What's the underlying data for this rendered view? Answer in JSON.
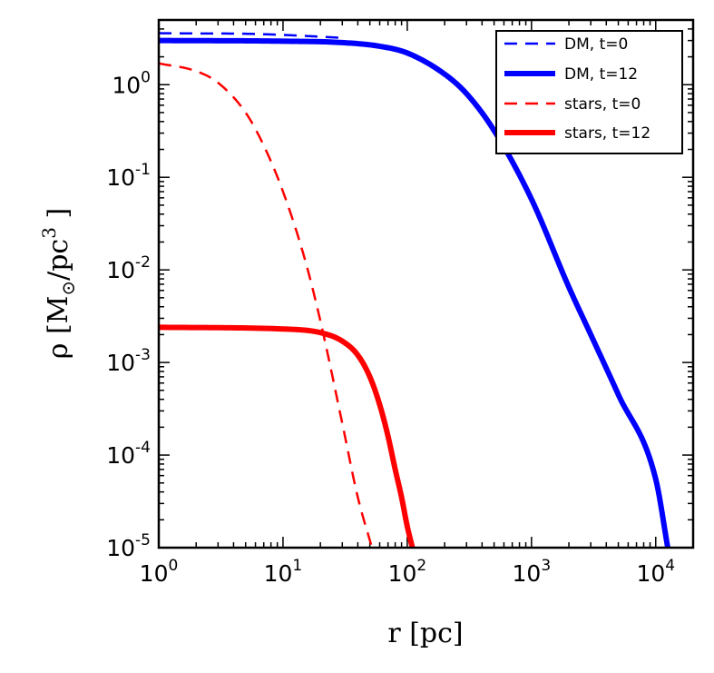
{
  "chart_data": {
    "type": "line",
    "xscale": "log",
    "yscale": "log",
    "xlim": [
      1,
      20000
    ],
    "ylim": [
      1e-05,
      5
    ],
    "xlabel": "r [pc]",
    "ylabel": {
      "prefix": "ρ [M",
      "sub": "⊙",
      "mid": "/pc",
      "sup": "3",
      "suffix": " ]"
    },
    "x_ticks": [
      {
        "value": 1,
        "base": "10",
        "exp": "0"
      },
      {
        "value": 10,
        "base": "10",
        "exp": "1"
      },
      {
        "value": 100,
        "base": "10",
        "exp": "2"
      },
      {
        "value": 1000,
        "base": "10",
        "exp": "3"
      },
      {
        "value": 10000,
        "base": "10",
        "exp": "4"
      }
    ],
    "y_ticks": [
      {
        "value": 1,
        "base": "10",
        "exp": "0"
      },
      {
        "value": 0.1,
        "base": "10",
        "exp": "-1"
      },
      {
        "value": 0.01,
        "base": "10",
        "exp": "-2"
      },
      {
        "value": 0.001,
        "base": "10",
        "exp": "-3"
      },
      {
        "value": 0.0001,
        "base": "10",
        "exp": "-4"
      },
      {
        "value": 1e-05,
        "base": "10",
        "exp": "-5"
      }
    ],
    "series": [
      {
        "name": "DM, t=0",
        "color": "#0000ff",
        "style": "dashed",
        "x": [
          1,
          2,
          5,
          10,
          20,
          30
        ],
        "y": [
          3.6,
          3.58,
          3.55,
          3.45,
          3.3,
          3.2
        ]
      },
      {
        "name": "DM, t=12",
        "color": "#0000ff",
        "style": "solid",
        "x": [
          1,
          10,
          30,
          60,
          100,
          200,
          300,
          500,
          1000,
          2000,
          3000,
          5000,
          10000,
          12500
        ],
        "y": [
          3.0,
          2.95,
          2.85,
          2.6,
          2.2,
          1.3,
          0.8,
          0.32,
          0.058,
          0.0065,
          0.002,
          0.00045,
          5.5e-05,
          1e-05
        ]
      },
      {
        "name": "stars, t=0",
        "color": "#ff0000",
        "style": "dashed",
        "x": [
          1,
          2,
          3,
          5,
          7,
          10,
          15,
          20,
          30,
          40,
          52
        ],
        "y": [
          1.7,
          1.4,
          1.05,
          0.5,
          0.22,
          0.07,
          0.013,
          0.0028,
          0.00022,
          3.5e-05,
          1e-05
        ]
      },
      {
        "name": "stars, t=12",
        "color": "#ff0000",
        "style": "solid",
        "x": [
          1,
          10,
          20,
          30,
          40,
          50,
          60,
          70,
          80,
          90,
          100,
          110
        ],
        "y": [
          0.0024,
          0.0023,
          0.0021,
          0.0017,
          0.0012,
          0.0007,
          0.00035,
          0.00016,
          7e-05,
          3.5e-05,
          1.7e-05,
          1e-05
        ]
      }
    ],
    "legend": {
      "position": "top-right",
      "entries": [
        "DM, t=0",
        "DM, t=12",
        "stars, t=0",
        "stars, t=12"
      ]
    }
  }
}
